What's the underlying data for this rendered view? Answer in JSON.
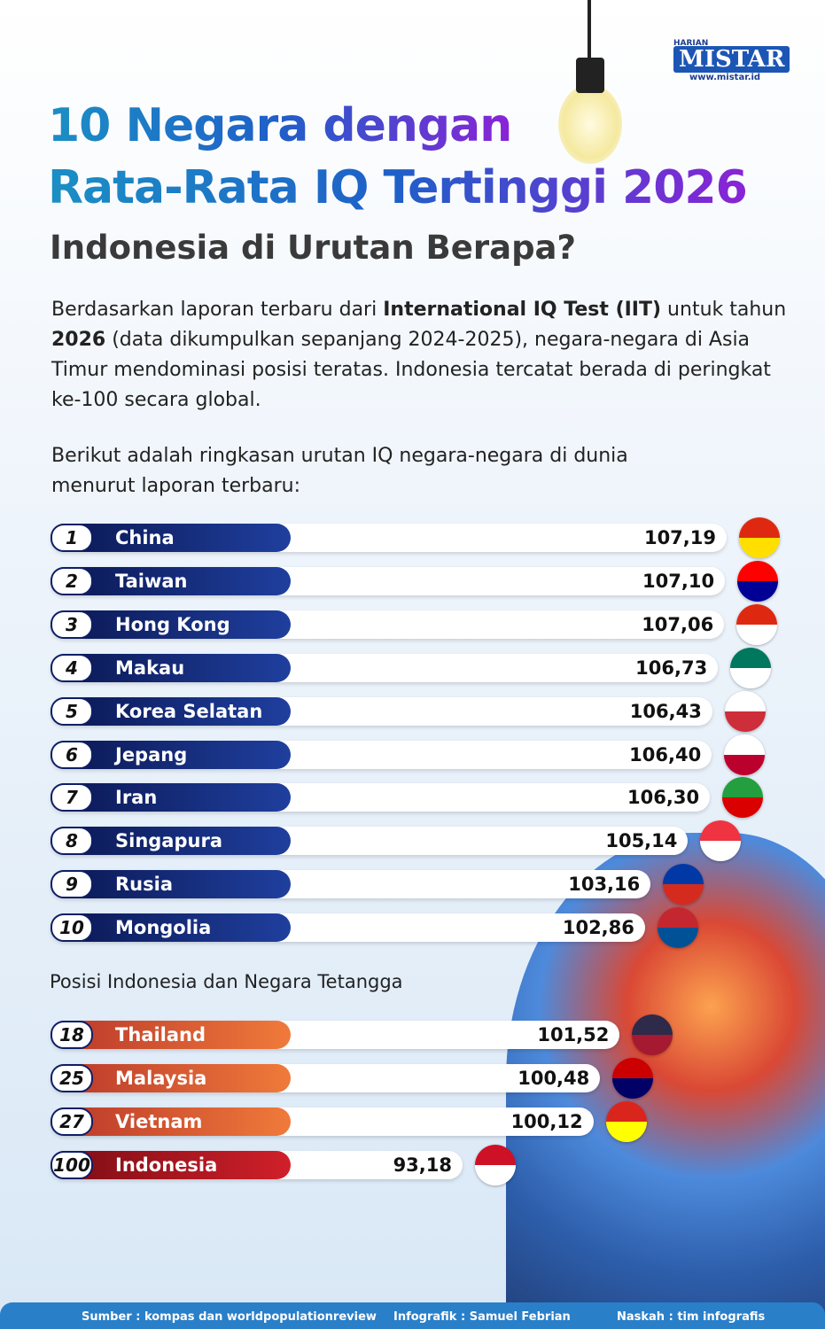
{
  "header": {
    "logo_top": "HARIAN",
    "logo": "MISTAR",
    "logo_url": "www.mistar.id",
    "title_line1": "10 Negara dengan",
    "title_line2": "Rata-Rata IQ Tertinggi 2026",
    "subtitle": "Indonesia di Urutan Berapa?"
  },
  "intro": [
    {
      "text": "Berdasarkan laporan terbaru dari ",
      "bold": false
    },
    {
      "text": "International IQ Test (IIT)",
      "bold": true
    },
    {
      "text": " untuk tahun ",
      "bold": false
    },
    {
      "text": "2026",
      "bold": true
    },
    {
      "text": " (data dikumpulkan sepanjang 2024-2025), negara-negara di Asia Timur mendominasi posisi teratas. Indonesia tercatat berada di peringkat ke-100 secara global.",
      "bold": false
    }
  ],
  "summary": "Berikut adalah ringkasan urutan IQ negara-negara di dunia menurut laporan terbaru:",
  "top_ten": [
    {
      "rank": 1,
      "name": "China",
      "value": 107.19,
      "value_label": "107,19",
      "flag": [
        "#de2910",
        "#ffde00"
      ]
    },
    {
      "rank": 2,
      "name": "Taiwan",
      "value": 107.1,
      "value_label": "107,10",
      "flag": [
        "#fe0000",
        "#000095"
      ]
    },
    {
      "rank": 3,
      "name": "Hong Kong",
      "value": 107.06,
      "value_label": "107,06",
      "flag": [
        "#de2910",
        "#ffffff"
      ]
    },
    {
      "rank": 4,
      "name": "Makau",
      "value": 106.73,
      "value_label": "106,73",
      "flag": [
        "#00785e",
        "#ffffff"
      ]
    },
    {
      "rank": 5,
      "name": "Korea Selatan",
      "value": 106.43,
      "value_label": "106,43",
      "flag": [
        "#ffffff",
        "#cd2e3a"
      ]
    },
    {
      "rank": 6,
      "name": "Jepang",
      "value": 106.4,
      "value_label": "106,40",
      "flag": [
        "#ffffff",
        "#bc002d"
      ]
    },
    {
      "rank": 7,
      "name": "Iran",
      "value": 106.3,
      "value_label": "106,30",
      "flag": [
        "#239f40",
        "#da0000"
      ]
    },
    {
      "rank": 8,
      "name": "Singapura",
      "value": 105.14,
      "value_label": "105,14",
      "flag": [
        "#ef3340",
        "#ffffff"
      ]
    },
    {
      "rank": 9,
      "name": "Rusia",
      "value": 103.16,
      "value_label": "103,16",
      "flag": [
        "#0039a6",
        "#d52b1e"
      ]
    },
    {
      "rank": 10,
      "name": "Mongolia",
      "value": 102.86,
      "value_label": "102,86",
      "flag": [
        "#c4272f",
        "#015197"
      ]
    }
  ],
  "neighbors_heading": "Posisi Indonesia dan Negara Tetangga",
  "neighbors": [
    {
      "rank": 18,
      "name": "Thailand",
      "value": 101.52,
      "value_label": "101,52",
      "flag": [
        "#2d2a4a",
        "#a51931"
      ]
    },
    {
      "rank": 25,
      "name": "Malaysia",
      "value": 100.48,
      "value_label": "100,48",
      "flag": [
        "#cc0001",
        "#010066"
      ]
    },
    {
      "rank": 27,
      "name": "Vietnam",
      "value": 100.12,
      "value_label": "100,12",
      "flag": [
        "#da251d",
        "#ffff00"
      ]
    },
    {
      "rank": 100,
      "name": "Indonesia",
      "value": 93.18,
      "value_label": "93,18",
      "flag": [
        "#ce1126",
        "#ffffff"
      ]
    }
  ],
  "footer": {
    "source": "Sumber : kompas dan worldpopulationreview",
    "infographic": "Infografik : Samuel Febrian",
    "script": "Naskah : tim infografis"
  }
}
